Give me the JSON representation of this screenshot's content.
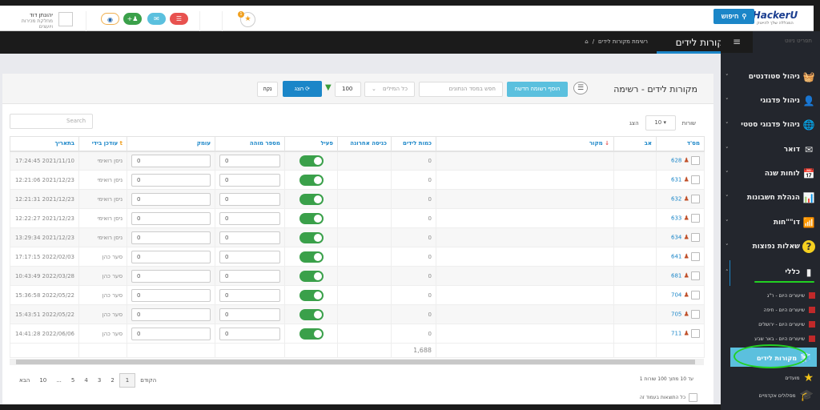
{
  "header": {
    "logo": "HackerU",
    "logo_tagline": "המכללה שלך להייטק",
    "search_label": "חיפוש",
    "notification_count": "1",
    "user_name": "יהונתן דוד",
    "user_role": "מחלקת מכירות ויועצים"
  },
  "breadcrumb": {
    "title": "מקורות לידים",
    "current": "רשימת מקורות לידים"
  },
  "toolbar": {
    "card_title": "מקורות לידים - רשימה",
    "add_label": "הוסף רשומה חדשה",
    "search_placeholder": "חפש במסד הנתונים",
    "words_select": "כל המילים",
    "limit": "100",
    "show_label": "הצג",
    "clear_label": "נקה"
  },
  "table_controls": {
    "show": "הצג",
    "page_size": "10",
    "rows": "שורות",
    "search_placeholder": "Search"
  },
  "columns": [
    "מס'ד",
    "אב",
    "מקור",
    "כמות לידים",
    "כניסה אחרונה",
    "פעיל",
    "מספר מוהה",
    "עומק",
    "עודכן בידי",
    "בתאריך"
  ],
  "rows": [
    {
      "id": "628",
      "leads": "0",
      "active": true,
      "num": "0",
      "depth": "0",
      "by": "ניסן רואימי",
      "date": "2021/11/10 17:24:45"
    },
    {
      "id": "631",
      "leads": "0",
      "active": true,
      "num": "0",
      "depth": "0",
      "by": "ניסן רואימי",
      "date": "2021/12/23 12:21:06"
    },
    {
      "id": "632",
      "leads": "0",
      "active": true,
      "num": "0",
      "depth": "0",
      "by": "ניסן רואימי",
      "date": "2021/12/23 12:21:31"
    },
    {
      "id": "633",
      "leads": "0",
      "active": true,
      "num": "0",
      "depth": "0",
      "by": "ניסן רואימי",
      "date": "2021/12/23 12:22:27"
    },
    {
      "id": "634",
      "leads": "0",
      "active": true,
      "num": "0",
      "depth": "0",
      "by": "ניסן רואימי",
      "date": "2021/12/23 13:29:34"
    },
    {
      "id": "641",
      "leads": "0",
      "active": true,
      "num": "0",
      "depth": "0",
      "by": "סער כהן",
      "date": "2022/02/03 17:17:15"
    },
    {
      "id": "681",
      "leads": "0",
      "active": true,
      "num": "0",
      "depth": "0",
      "by": "סער כהן",
      "date": "2022/03/28 10:43:49"
    },
    {
      "id": "704",
      "leads": "0",
      "active": true,
      "num": "0",
      "depth": "0",
      "by": "סער כהן",
      "date": "2022/05/22 15:36:58"
    },
    {
      "id": "705",
      "leads": "0",
      "active": true,
      "num": "0",
      "depth": "0",
      "by": "סער כהן",
      "date": "2022/05/22 15:43:51"
    },
    {
      "id": "711",
      "leads": "0",
      "active": true,
      "num": "0",
      "depth": "0",
      "by": "סער כהן",
      "date": "2022/06/06 14:41:28"
    }
  ],
  "total_leads": "1,688",
  "footer": {
    "info": "1 עד 10 מתוך 100 שורות",
    "all_results": "כל התוצאות בעמוד זה",
    "prev": "הקודם",
    "next": "הבא",
    "pages": [
      "1",
      "2",
      "3",
      "4",
      "5",
      "...",
      "10"
    ]
  },
  "sidebar": {
    "heading": "תפריט ניווט",
    "items": [
      {
        "label": "ניהול סטודנטים",
        "icon": "students-icon"
      },
      {
        "label": "ניהול פדגוגי",
        "icon": "teacher-icon"
      },
      {
        "label": "ניהול פדגוגי סטטי",
        "icon": "globe-icon"
      },
      {
        "label": "דואר",
        "icon": "mail-icon"
      },
      {
        "label": "לוחות שנה",
        "icon": "calendar-icon"
      },
      {
        "label": "הנהלת חשבונות",
        "icon": "accounting-icon"
      },
      {
        "label": "דו\"\"חות",
        "icon": "reports-icon"
      },
      {
        "label": "שאלות נפוצות",
        "icon": "question-icon"
      },
      {
        "label": "כללי",
        "icon": "chart-icon"
      }
    ],
    "subitems": [
      "שיעורים היום - ר\"ג",
      "שיעורים היום - חיפה",
      "שיעורים היום - ירושלים",
      "שיעורים היום - באר שבע"
    ],
    "active": "מקורות לידים",
    "more": [
      "מועדים",
      "מסלולים אקדמיים"
    ]
  },
  "colors": {
    "primary": "#1b86c8",
    "success": "#3aa04a",
    "info": "#5bc0de",
    "danger": "#e8524f",
    "sidebar": "#23262d"
  }
}
